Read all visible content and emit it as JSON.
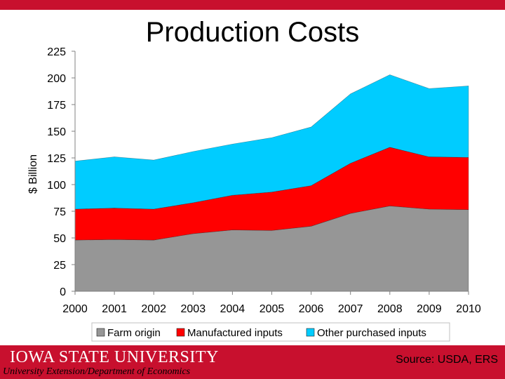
{
  "slide": {
    "title": "Production Costs",
    "logo": "IOWA STATE UNIVERSITY",
    "subtitle": "University Extension/Department of Economics",
    "source": "Source: USDA, ERS"
  },
  "chart_data": {
    "type": "area",
    "stacked": true,
    "ylabel": "$ Billion",
    "xlabel": "",
    "ylim": [
      0,
      225
    ],
    "yticks": [
      0,
      25,
      50,
      75,
      100,
      125,
      150,
      175,
      200,
      225
    ],
    "categories": [
      "2000",
      "2001",
      "2002",
      "2003",
      "2004",
      "2005",
      "2006",
      "2007",
      "2008",
      "2009",
      "2010"
    ],
    "series": [
      {
        "name": "Farm origin",
        "color": "#969696",
        "values": [
          48,
          48.5,
          48,
          54,
          57.5,
          57,
          61,
          73,
          80,
          77,
          76.5
        ]
      },
      {
        "name": "Manufactured inputs",
        "color": "#ff0000",
        "values": [
          29,
          29.5,
          29,
          29,
          32.5,
          36,
          38,
          47,
          55,
          49,
          49
        ]
      },
      {
        "name": "Other purchased inputs",
        "color": "#00ccff",
        "values": [
          45,
          48,
          46,
          48,
          48,
          51,
          55,
          65,
          68,
          64,
          67
        ]
      }
    ],
    "legend_position": "bottom"
  }
}
